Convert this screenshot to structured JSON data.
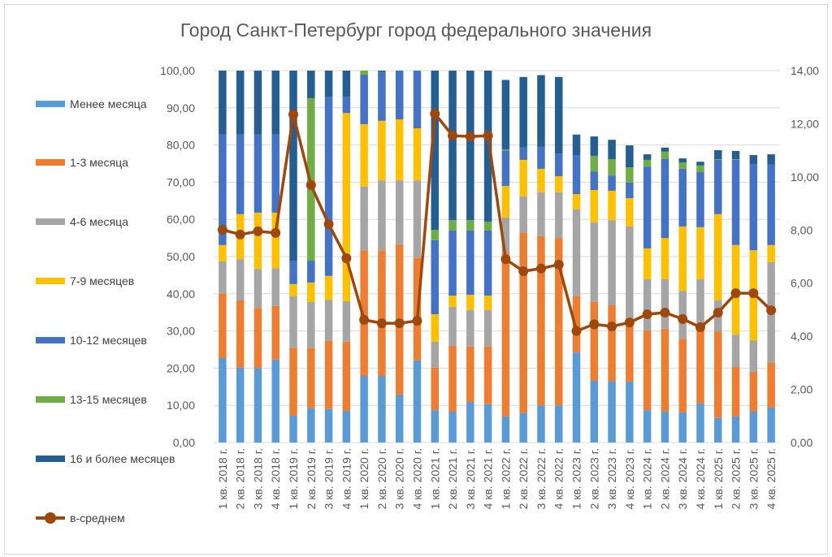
{
  "chart_data": {
    "type": "bar",
    "stacked": true,
    "title": "Город Санкт-Петербург город федерального значения",
    "categories": [
      "1 кв. 2018 г.",
      "2 кв. 2018 г.",
      "3 кв. 2018 г.",
      "4 кв. 2018 г.",
      "1 кв. 2019 г.",
      "2 кв. 2019 г.",
      "3 кв. 2019 г.",
      "4 кв. 2019 г.",
      "1 кв. 2020 г.",
      "2 кв. 2020 г.",
      "3 кв. 2020 г.",
      "4 кв. 2020 г.",
      "1 кв. 2021 г.",
      "2 кв. 2021 г.",
      "3 кв. 2021 г.",
      "4 кв. 2021 г.",
      "1 кв. 2022 г.",
      "2 кв. 2022 г.",
      "3 кв. 2022 г.",
      "4 кв. 2022 г.",
      "1 кв. 2023 г.",
      "2 кв. 2023 г.",
      "3 кв. 2023 г.",
      "4 кв. 2023 г.",
      "1 кв. 2024 г.",
      "2 кв. 2024 г.",
      "3 кв. 2024 г.",
      "4 кв. 2024 г.",
      "1 кв. 2025 г.",
      "2 кв. 2025 г.",
      "3 кв. 2025 г.",
      "4 кв. 2025 г."
    ],
    "series": [
      {
        "name": "Менее месяца",
        "color": "#5B9BD5",
        "values": [
          22.7,
          20.1,
          20.0,
          22.3,
          7.2,
          9.2,
          9.0,
          8.5,
          17.9,
          17.9,
          12.9,
          22.1,
          8.7,
          8.3,
          10.9,
          10.3,
          7.0,
          8.0,
          10.0,
          10.0,
          24.2,
          16.6,
          16.5,
          16.4,
          8.7,
          8.3,
          8.1,
          10.5,
          6.6,
          7.0,
          8.3,
          9.4
        ]
      },
      {
        "name": "1-3 месяца",
        "color": "#ED7D31",
        "values": [
          17.3,
          18.1,
          16.2,
          14.4,
          18.3,
          16.3,
          18.3,
          18.6,
          33.8,
          33.8,
          40.4,
          27.5,
          11.4,
          17.7,
          14.9,
          15.5,
          44.0,
          48.5,
          45.5,
          45.0,
          15.1,
          21.2,
          20.4,
          15.9,
          21.4,
          22.3,
          19.8,
          20.1,
          23.3,
          13.3,
          10.7,
          12.0
        ]
      },
      {
        "name": "4-6 месяца",
        "color": "#A5A5A5",
        "values": [
          8.7,
          11.1,
          10.5,
          10.2,
          13.8,
          12.3,
          11.1,
          10.9,
          17.1,
          18.8,
          17.2,
          20.9,
          7.0,
          10.5,
          9.8,
          9.8,
          9.5,
          9.7,
          11.8,
          12.3,
          23.4,
          21.4,
          22.9,
          25.8,
          13.8,
          13.3,
          12.9,
          13.3,
          8.3,
          8.7,
          8.5,
          27.1
        ]
      },
      {
        "name": "7-9 месяцев",
        "color": "#FFC000",
        "values": [
          4.4,
          12.1,
          15.1,
          14.9,
          3.3,
          5.2,
          6.4,
          50.6,
          16.8,
          16.0,
          16.4,
          14.0,
          7.4,
          3.0,
          4.1,
          3.9,
          8.5,
          9.8,
          6.3,
          4.3,
          4.1,
          8.7,
          7.9,
          7.6,
          8.3,
          11.1,
          17.3,
          14.0,
          23.2,
          24.1,
          24.2,
          4.6
        ]
      },
      {
        "name": "10-12 месяцев",
        "color": "#4472C4",
        "values": [
          29.7,
          21.4,
          21.0,
          21.0,
          6.3,
          5.9,
          48.2,
          4.4,
          13.3,
          13.2,
          13.1,
          15.5,
          19.9,
          17.5,
          17.3,
          17.5,
          9.5,
          3.3,
          5.9,
          6.1,
          10.5,
          5.0,
          4.1,
          4.2,
          22.0,
          21.2,
          15.5,
          14.8,
          14.6,
          22.9,
          23.2,
          21.6
        ]
      },
      {
        "name": "13-15 месяцев",
        "color": "#70AD47",
        "values": [
          0,
          0,
          0,
          0,
          0,
          43.7,
          0,
          0,
          1.1,
          0,
          0,
          0,
          2.8,
          2.8,
          2.8,
          2.4,
          0.3,
          0,
          0,
          0,
          0,
          4.2,
          4.4,
          4.1,
          1.8,
          2.0,
          1.7,
          1.8,
          0.2,
          0.2,
          0,
          0
        ]
      },
      {
        "name": "16 и более месяцев",
        "color": "#255E91",
        "values": [
          17.2,
          17.2,
          17.2,
          17.2,
          51.1,
          7.4,
          7.0,
          7.0,
          0,
          0.3,
          0,
          0,
          42.8,
          40.2,
          40.2,
          40.6,
          18.7,
          19.0,
          19.3,
          20.6,
          5.5,
          5.2,
          5.2,
          5.9,
          1.5,
          1.1,
          1.1,
          1.0,
          2.4,
          2.2,
          2.4,
          2.8
        ]
      }
    ],
    "line_series": {
      "name": "в-среднем",
      "color": "#9E480E",
      "axis": "secondary",
      "values": [
        8.01,
        7.83,
        7.95,
        7.89,
        12.35,
        9.69,
        8.22,
        6.94,
        4.62,
        4.49,
        4.49,
        4.58,
        12.38,
        11.55,
        11.52,
        11.55,
        6.9,
        6.45,
        6.55,
        6.7,
        4.2,
        4.45,
        4.37,
        4.52,
        4.83,
        4.89,
        4.65,
        4.34,
        4.89,
        5.62,
        5.62,
        4.98
      ]
    },
    "ylim": [
      0,
      100
    ],
    "y2lim": [
      0,
      14
    ],
    "yticks": [
      "0,00",
      "10,00",
      "20,00",
      "30,00",
      "40,00",
      "50,00",
      "60,00",
      "70,00",
      "80,00",
      "90,00",
      "100,00"
    ],
    "y2ticks": [
      "0,00",
      "2,00",
      "4,00",
      "6,00",
      "8,00",
      "10,00",
      "12,00",
      "14,00"
    ],
    "grid": true,
    "legend_position": "left"
  }
}
